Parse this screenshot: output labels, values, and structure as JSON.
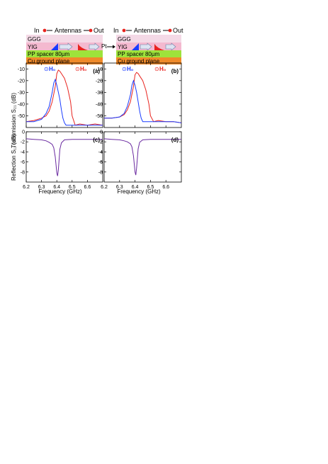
{
  "schematic": {
    "in_label": "In",
    "antennas_label": "Antennas",
    "out_label": "Out",
    "layers": [
      "GGG",
      "YIG",
      "PP spacer 80µm",
      "Cu ground plane"
    ],
    "pt_label": "Pt",
    "field_minus": "H₀",
    "field_plus": "H₀",
    "field_minus_symbol": "⊙",
    "field_plus_symbol": "⊙"
  },
  "colors": {
    "ggg": "#f4d9e6",
    "yig": "#f4b9cf",
    "pp": "#9ee33b",
    "cu": "#f08a2a",
    "blue": "#1a3cff",
    "red": "#e8231e",
    "purple": "#6a2aa0"
  },
  "xlabel": "Frequency (GHz)",
  "ylabel_top": "Transmission S₂₁ (dB)",
  "ylabel_bottom": "Reflection S₁₁ (dB)",
  "chart_data": [
    {
      "panel": "(a)",
      "type": "line",
      "xlim": [
        6.2,
        6.7
      ],
      "ylim": [
        -60,
        -5
      ],
      "x_ticks": [
        "6.2",
        "6.3",
        "6.4",
        "6.5",
        "6.6"
      ],
      "y_ticks": [
        "-10",
        "-20",
        "-30",
        "-40",
        "-50"
      ],
      "series": [
        {
          "color": "red",
          "x": [
            6.2,
            6.25,
            6.3,
            6.33,
            6.35,
            6.37,
            6.39,
            6.4,
            6.41,
            6.42,
            6.43,
            6.45,
            6.47,
            6.49,
            6.5,
            6.52,
            6.55,
            6.6,
            6.65,
            6.7
          ],
          "y": [
            -55,
            -54,
            -52,
            -50,
            -46,
            -38,
            -25,
            -14,
            -11,
            -12,
            -14,
            -18,
            -26,
            -38,
            -50,
            -58,
            -57,
            -58,
            -57,
            -58
          ]
        },
        {
          "color": "blue",
          "x": [
            6.2,
            6.25,
            6.3,
            6.33,
            6.35,
            6.37,
            6.38,
            6.39,
            6.4,
            6.41,
            6.42,
            6.43,
            6.44,
            6.45,
            6.46,
            6.5,
            6.55,
            6.6,
            6.65,
            6.7
          ],
          "y": [
            -55,
            -55,
            -53,
            -48,
            -42,
            -30,
            -22,
            -19,
            -24,
            -30,
            -36,
            -45,
            -52,
            -56,
            -58,
            -58,
            -58,
            -58,
            -58,
            -58
          ]
        }
      ]
    },
    {
      "panel": "(b)",
      "type": "line",
      "xlim": [
        6.2,
        6.7
      ],
      "ylim": [
        -60,
        -5
      ],
      "x_ticks": [
        "6.2",
        "6.3",
        "6.4",
        "6.5",
        "6.6"
      ],
      "y_ticks": [
        "-10",
        "-20",
        "-30",
        "-40",
        "-50"
      ],
      "series": [
        {
          "color": "red",
          "x": [
            6.2,
            6.25,
            6.3,
            6.33,
            6.35,
            6.37,
            6.39,
            6.4,
            6.41,
            6.42,
            6.43,
            6.45,
            6.47,
            6.49,
            6.5,
            6.52,
            6.55,
            6.6,
            6.65,
            6.7
          ],
          "y": [
            -52,
            -52,
            -51,
            -49,
            -45,
            -38,
            -25,
            -15,
            -13,
            -14,
            -16,
            -20,
            -28,
            -40,
            -50,
            -55,
            -54,
            -55,
            -55,
            -56
          ]
        },
        {
          "color": "blue",
          "x": [
            6.2,
            6.25,
            6.3,
            6.33,
            6.35,
            6.37,
            6.38,
            6.39,
            6.4,
            6.41,
            6.42,
            6.43,
            6.44,
            6.45,
            6.46,
            6.5,
            6.55,
            6.6,
            6.65,
            6.7
          ],
          "y": [
            -52,
            -52,
            -51,
            -48,
            -42,
            -32,
            -24,
            -20,
            -24,
            -30,
            -38,
            -46,
            -52,
            -55,
            -55,
            -55,
            -55,
            -55,
            -55,
            -56
          ]
        }
      ]
    },
    {
      "panel": "(c)",
      "type": "line",
      "xlim": [
        6.2,
        6.7
      ],
      "ylim": [
        -10,
        0
      ],
      "x_ticks": [
        "6.2",
        "6.3",
        "6.4",
        "6.5",
        "6.6"
      ],
      "y_ticks": [
        "0",
        "-2",
        "-4",
        "-6",
        "-8"
      ],
      "series": [
        {
          "color": "purple",
          "x": [
            6.2,
            6.25,
            6.3,
            6.33,
            6.35,
            6.37,
            6.38,
            6.39,
            6.4,
            6.405,
            6.41,
            6.42,
            6.43,
            6.45,
            6.5,
            6.55,
            6.6,
            6.65,
            6.7
          ],
          "y": [
            -1.4,
            -1.5,
            -1.6,
            -1.8,
            -2.1,
            -2.5,
            -3.2,
            -5.0,
            -8.2,
            -8.8,
            -7.5,
            -3.5,
            -2.2,
            -1.6,
            -1.5,
            -1.5,
            -1.5,
            -1.5,
            -1.5
          ]
        }
      ]
    },
    {
      "panel": "(d)",
      "type": "line",
      "xlim": [
        6.2,
        6.7
      ],
      "ylim": [
        -10,
        0
      ],
      "x_ticks": [
        "6.2",
        "6.3",
        "6.4",
        "6.5",
        "6.6"
      ],
      "y_ticks": [
        "0",
        "-2",
        "-4",
        "-6",
        "-8"
      ],
      "series": [
        {
          "color": "purple",
          "x": [
            6.2,
            6.25,
            6.3,
            6.33,
            6.35,
            6.37,
            6.38,
            6.39,
            6.4,
            6.405,
            6.41,
            6.42,
            6.43,
            6.45,
            6.5,
            6.55,
            6.6,
            6.65,
            6.7
          ],
          "y": [
            -1.4,
            -1.5,
            -1.6,
            -1.8,
            -2.0,
            -2.4,
            -3.0,
            -4.8,
            -8.0,
            -8.6,
            -7.2,
            -3.4,
            -2.1,
            -1.6,
            -1.5,
            -1.5,
            -1.5,
            -1.5,
            -1.5
          ]
        }
      ]
    }
  ]
}
